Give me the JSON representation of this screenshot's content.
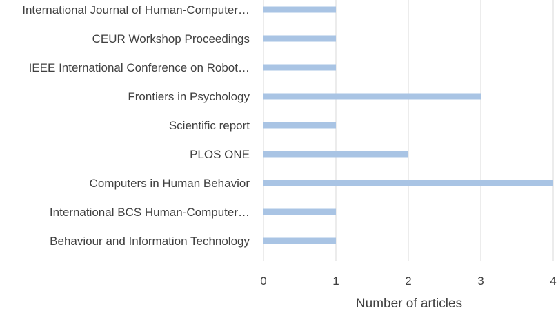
{
  "chart_data": {
    "type": "bar",
    "orientation": "horizontal",
    "categories": [
      "International Journal of Human-Computer…",
      "CEUR Workshop Proceedings",
      "IEEE International Conference on Robot…",
      "Frontiers in Psychology",
      "Scientific report",
      "PLOS ONE",
      "Computers in Human Behavior",
      "International BCS Human-Computer…",
      "Behaviour and Information Technology"
    ],
    "values": [
      1,
      1,
      1,
      3,
      1,
      2,
      4,
      1,
      1
    ],
    "xlabel": "Number of articles",
    "xlim": [
      0,
      4
    ],
    "xticks": [
      "0",
      "1",
      "2",
      "3",
      "4"
    ],
    "grid": true,
    "bar_color": "#a9c4e4"
  }
}
